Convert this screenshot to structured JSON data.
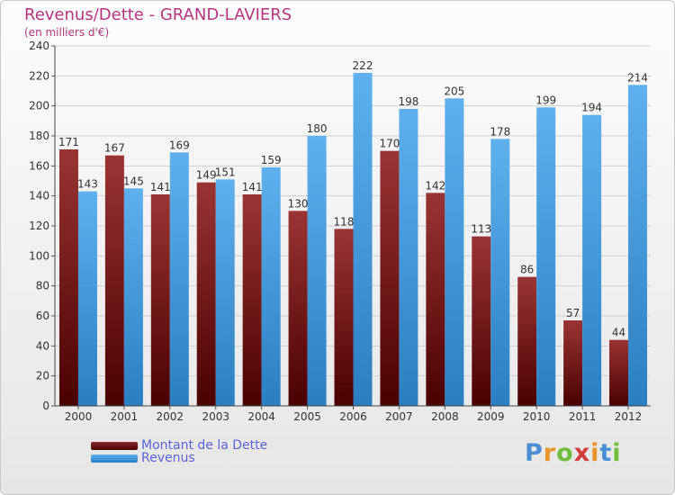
{
  "title": "Revenus/Dette - GRAND-LAVIERS",
  "subtitle": "(en milliers d'€)",
  "logo": {
    "text": "Proxiti",
    "letter_colors": [
      "#4a8fd6",
      "#e8962b",
      "#6fbe3b",
      "#d43c3c",
      "#e8962b",
      "#4a8fd6",
      "#6fbe3b"
    ]
  },
  "chart_data": {
    "type": "bar",
    "categories": [
      "2000",
      "2001",
      "2002",
      "2003",
      "2004",
      "2005",
      "2006",
      "2007",
      "2008",
      "2009",
      "2010",
      "2011",
      "2012"
    ],
    "series": [
      {
        "name": "Montant de la Dette",
        "color": "#7a1a1a",
        "values": [
          171,
          167,
          141,
          149,
          141,
          130,
          118,
          170,
          142,
          113,
          86,
          57,
          44
        ]
      },
      {
        "name": "Revenus",
        "color": "#3d9be6",
        "values": [
          143,
          145,
          169,
          151,
          159,
          180,
          222,
          198,
          205,
          178,
          199,
          194,
          214
        ]
      }
    ],
    "yticks": [
      0,
      20,
      40,
      60,
      80,
      100,
      120,
      140,
      160,
      180,
      200,
      220,
      240
    ],
    "ylim": [
      0,
      240
    ],
    "grid": true,
    "legend": "bottom-left"
  }
}
